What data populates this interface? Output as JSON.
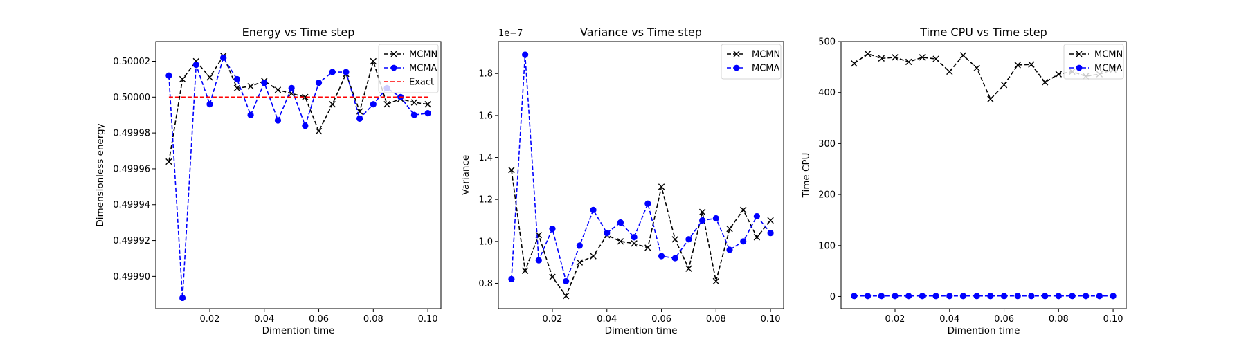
{
  "chart_data": [
    {
      "type": "line",
      "title": "Energy vs Time step",
      "xlabel": "Dimention time",
      "ylabel": "Dimensionless energy",
      "xlim": [
        0.0002,
        0.1048
      ],
      "ylim": [
        0.499882,
        0.500031
      ],
      "xticks": [
        0.02,
        0.04,
        0.06,
        0.08,
        0.1
      ],
      "xtick_labels": [
        "0.02",
        "0.04",
        "0.06",
        "0.08",
        "0.10"
      ],
      "yticks": [
        0.4999,
        0.49992,
        0.49994,
        0.49996,
        0.49998,
        0.5,
        0.50002
      ],
      "ytick_labels": [
        "0.49990",
        "0.49992",
        "0.49994",
        "0.49996",
        "0.49998",
        "0.50000",
        "0.50002"
      ],
      "legend_position": "top-right",
      "x": [
        0.005,
        0.01,
        0.015,
        0.02,
        0.025,
        0.03,
        0.035,
        0.04,
        0.045,
        0.05,
        0.055,
        0.06,
        0.065,
        0.07,
        0.075,
        0.08,
        0.085,
        0.09,
        0.095,
        0.1
      ],
      "series": [
        {
          "name": "MCMN",
          "color": "#000000",
          "marker": "x",
          "values": [
            0.499964,
            0.50001,
            0.50002,
            0.500011,
            0.500023,
            0.500005,
            0.500006,
            0.500009,
            0.500004,
            0.500002,
            0.5,
            0.499981,
            0.499996,
            0.500013,
            0.499992,
            0.50002,
            0.499996,
            0.499999,
            0.499997,
            0.499996
          ]
        },
        {
          "name": "MCMA",
          "color": "#0000ff",
          "marker": "o",
          "values": [
            0.500012,
            0.499888,
            0.500018,
            0.499996,
            0.500022,
            0.50001,
            0.49999,
            0.500008,
            0.499987,
            0.500005,
            0.499984,
            0.500008,
            0.500014,
            0.500014,
            0.499988,
            0.499996,
            0.500005,
            0.5,
            0.49999,
            0.499991
          ]
        },
        {
          "name": "Exact",
          "color": "#ff0000",
          "marker": "none",
          "constant": 0.5
        }
      ]
    },
    {
      "type": "line",
      "title": "Variance vs Time step",
      "xlabel": "Dimention time",
      "ylabel": "Variance",
      "offset_text": "1e−7",
      "xlim": [
        0.0002,
        0.1048
      ],
      "ylim": [
        0.6795,
        1.9525
      ],
      "xticks": [
        0.02,
        0.04,
        0.06,
        0.08,
        0.1
      ],
      "xtick_labels": [
        "0.02",
        "0.04",
        "0.06",
        "0.08",
        "0.10"
      ],
      "yticks": [
        0.8,
        1.0,
        1.2,
        1.4,
        1.6,
        1.8
      ],
      "ytick_labels": [
        "0.8",
        "1.0",
        "1.2",
        "1.4",
        "1.6",
        "1.8"
      ],
      "legend_position": "top-right",
      "x": [
        0.005,
        0.01,
        0.015,
        0.02,
        0.025,
        0.03,
        0.035,
        0.04,
        0.045,
        0.05,
        0.055,
        0.06,
        0.065,
        0.07,
        0.075,
        0.08,
        0.085,
        0.09,
        0.095,
        0.1
      ],
      "series": [
        {
          "name": "MCMN",
          "color": "#000000",
          "marker": "x",
          "values": [
            1.34,
            0.86,
            1.03,
            0.83,
            0.74,
            0.9,
            0.93,
            1.03,
            1.0,
            0.99,
            0.97,
            1.26,
            1.01,
            0.87,
            1.14,
            0.81,
            1.06,
            1.15,
            1.02,
            1.1
          ]
        },
        {
          "name": "MCMA",
          "color": "#0000ff",
          "marker": "o",
          "values": [
            0.82,
            1.89,
            0.91,
            1.06,
            0.81,
            0.98,
            1.15,
            1.04,
            1.09,
            1.02,
            1.18,
            0.93,
            0.92,
            1.01,
            1.1,
            1.11,
            0.96,
            1.0,
            1.12,
            1.04
          ]
        }
      ]
    },
    {
      "type": "line",
      "title": "Time CPU vs Time step",
      "xlabel": "Dimention time",
      "ylabel": "Time CPU",
      "xlim": [
        0.0002,
        0.1048
      ],
      "ylim": [
        -23.8,
        500
      ],
      "xticks": [
        0.02,
        0.04,
        0.06,
        0.08,
        0.1
      ],
      "xtick_labels": [
        "0.02",
        "0.04",
        "0.06",
        "0.08",
        "0.10"
      ],
      "yticks": [
        0,
        100,
        200,
        300,
        400,
        500
      ],
      "ytick_labels": [
        "0",
        "100",
        "200",
        "300",
        "400",
        "500"
      ],
      "legend_position": "top-right",
      "x": [
        0.005,
        0.01,
        0.015,
        0.02,
        0.025,
        0.03,
        0.035,
        0.04,
        0.045,
        0.05,
        0.055,
        0.06,
        0.065,
        0.07,
        0.075,
        0.08,
        0.085,
        0.09,
        0.095,
        0.1
      ],
      "series": [
        {
          "name": "MCMN",
          "color": "#000000",
          "marker": "x",
          "values": [
            457,
            476,
            467,
            469,
            460,
            469,
            466,
            441,
            473,
            448,
            387,
            415,
            454,
            455,
            420,
            436,
            441,
            432,
            436,
            445
          ]
        },
        {
          "name": "MCMA",
          "color": "#0000ff",
          "marker": "o",
          "values": [
            1,
            1,
            1,
            1,
            1,
            1,
            1,
            1,
            1,
            1,
            1,
            1,
            1,
            1,
            1,
            1,
            1,
            1,
            1,
            1
          ]
        }
      ]
    }
  ]
}
